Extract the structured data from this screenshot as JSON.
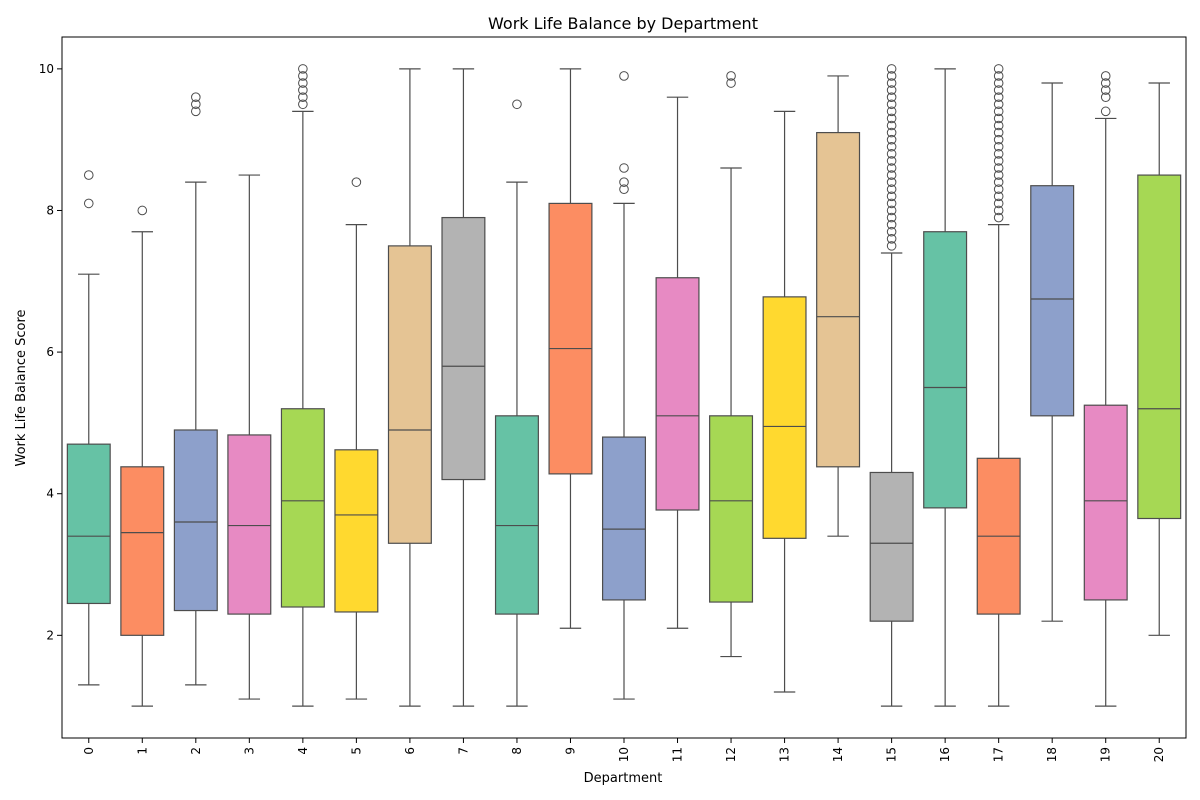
{
  "chart_data": {
    "type": "box",
    "title": "Work Life Balance by Department",
    "xlabel": "Department",
    "ylabel": "Work Life Balance Score",
    "ylim": [
      0.55,
      10.45
    ],
    "yticks": [
      2,
      4,
      6,
      8,
      10
    ],
    "grid": false,
    "legend": "none",
    "categories": [
      "0",
      "1",
      "2",
      "3",
      "4",
      "5",
      "6",
      "7",
      "8",
      "9",
      "10",
      "11",
      "12",
      "13",
      "14",
      "15",
      "16",
      "17",
      "18",
      "19",
      "20"
    ],
    "boxes": [
      {
        "category": "0",
        "whisker_low": 1.3,
        "q1": 2.45,
        "median": 3.4,
        "q3": 4.7,
        "whisker_high": 7.1,
        "outliers": [
          8.1,
          8.5
        ],
        "color": "#66c2a5"
      },
      {
        "category": "1",
        "whisker_low": 1.0,
        "q1": 2.0,
        "median": 3.45,
        "q3": 4.38,
        "whisker_high": 7.7,
        "outliers": [
          8.0
        ],
        "color": "#fc8d62"
      },
      {
        "category": "2",
        "whisker_low": 1.3,
        "q1": 2.35,
        "median": 3.6,
        "q3": 4.9,
        "whisker_high": 8.4,
        "outliers": [
          9.4,
          9.5,
          9.6
        ],
        "color": "#8da0cb"
      },
      {
        "category": "3",
        "whisker_low": 1.1,
        "q1": 2.3,
        "median": 3.55,
        "q3": 4.83,
        "whisker_high": 8.5,
        "outliers": [],
        "color": "#e78ac3"
      },
      {
        "category": "4",
        "whisker_low": 1.0,
        "q1": 2.4,
        "median": 3.9,
        "q3": 5.2,
        "whisker_high": 9.4,
        "outliers": [
          9.5,
          9.6,
          9.7,
          9.8,
          9.9,
          10.0
        ],
        "color": "#a6d854"
      },
      {
        "category": "5",
        "whisker_low": 1.1,
        "q1": 2.33,
        "median": 3.7,
        "q3": 4.62,
        "whisker_high": 7.8,
        "outliers": [
          8.4
        ],
        "color": "#ffd92f"
      },
      {
        "category": "6",
        "whisker_low": 1.0,
        "q1": 3.3,
        "median": 4.9,
        "q3": 7.5,
        "whisker_high": 10.0,
        "outliers": [],
        "color": "#e5c494"
      },
      {
        "category": "7",
        "whisker_low": 1.0,
        "q1": 4.2,
        "median": 5.8,
        "q3": 7.9,
        "whisker_high": 10.0,
        "outliers": [],
        "color": "#b3b3b3"
      },
      {
        "category": "8",
        "whisker_low": 1.0,
        "q1": 2.3,
        "median": 3.55,
        "q3": 5.1,
        "whisker_high": 8.4,
        "outliers": [
          9.5
        ],
        "color": "#66c2a5"
      },
      {
        "category": "9",
        "whisker_low": 2.1,
        "q1": 4.28,
        "median": 6.05,
        "q3": 8.1,
        "whisker_high": 10.0,
        "outliers": [],
        "color": "#fc8d62"
      },
      {
        "category": "10",
        "whisker_low": 1.1,
        "q1": 2.5,
        "median": 3.5,
        "q3": 4.8,
        "whisker_high": 8.1,
        "outliers": [
          8.3,
          8.4,
          8.6,
          9.9
        ],
        "color": "#8da0cb"
      },
      {
        "category": "11",
        "whisker_low": 2.1,
        "q1": 3.77,
        "median": 5.1,
        "q3": 7.05,
        "whisker_high": 9.6,
        "outliers": [],
        "color": "#e78ac3"
      },
      {
        "category": "12",
        "whisker_low": 1.7,
        "q1": 2.47,
        "median": 3.9,
        "q3": 5.1,
        "whisker_high": 8.6,
        "outliers": [
          9.8,
          9.9
        ],
        "color": "#a6d854"
      },
      {
        "category": "13",
        "whisker_low": 1.2,
        "q1": 3.37,
        "median": 4.95,
        "q3": 6.78,
        "whisker_high": 9.4,
        "outliers": [],
        "color": "#ffd92f"
      },
      {
        "category": "14",
        "whisker_low": 3.4,
        "q1": 4.38,
        "median": 6.5,
        "q3": 9.1,
        "whisker_high": 9.9,
        "outliers": [],
        "color": "#e5c494"
      },
      {
        "category": "15",
        "whisker_low": 1.0,
        "q1": 2.2,
        "median": 3.3,
        "q3": 4.3,
        "whisker_high": 7.4,
        "outliers": [
          7.5,
          7.6,
          7.7,
          7.8,
          7.9,
          8.0,
          8.1,
          8.2,
          8.3,
          8.4,
          8.5,
          8.6,
          8.7,
          8.8,
          8.9,
          9.0,
          9.1,
          9.2,
          9.3,
          9.4,
          9.5,
          9.6,
          9.7,
          9.8,
          9.9,
          10.0
        ],
        "color": "#b3b3b3"
      },
      {
        "category": "16",
        "whisker_low": 1.0,
        "q1": 3.8,
        "median": 5.5,
        "q3": 7.7,
        "whisker_high": 10.0,
        "outliers": [],
        "color": "#66c2a5"
      },
      {
        "category": "17",
        "whisker_low": 1.0,
        "q1": 2.3,
        "median": 3.4,
        "q3": 4.5,
        "whisker_high": 7.8,
        "outliers": [
          7.9,
          8.0,
          8.1,
          8.2,
          8.3,
          8.4,
          8.5,
          8.6,
          8.7,
          8.8,
          8.9,
          9.0,
          9.1,
          9.2,
          9.3,
          9.4,
          9.5,
          9.6,
          9.7,
          9.8,
          9.9,
          10.0
        ],
        "color": "#fc8d62"
      },
      {
        "category": "18",
        "whisker_low": 2.2,
        "q1": 5.1,
        "median": 6.75,
        "q3": 8.35,
        "whisker_high": 9.8,
        "outliers": [],
        "color": "#8da0cb"
      },
      {
        "category": "19",
        "whisker_low": 1.0,
        "q1": 2.5,
        "median": 3.9,
        "q3": 5.25,
        "whisker_high": 9.3,
        "outliers": [
          9.4,
          9.6,
          9.7,
          9.8,
          9.9
        ],
        "color": "#e78ac3"
      },
      {
        "category": "20",
        "whisker_low": 2.0,
        "q1": 3.65,
        "median": 5.2,
        "q3": 8.5,
        "whisker_high": 9.8,
        "outliers": [],
        "color": "#a6d854"
      }
    ]
  }
}
